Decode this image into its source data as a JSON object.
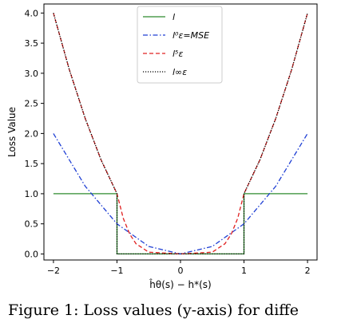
{
  "chart_data": {
    "type": "line",
    "xlabel": "ĥθ(s) − h*(s)",
    "ylabel": "Loss Value",
    "xlim": [
      -2.15,
      2.15
    ],
    "ylim": [
      -0.1,
      4.15
    ],
    "xticks": [
      -2,
      -1,
      0,
      1,
      2
    ],
    "xtick_labels": [
      "−2",
      "−1",
      "0",
      "1",
      "2"
    ],
    "yticks": [
      0.0,
      0.5,
      1.0,
      1.5,
      2.0,
      2.5,
      3.0,
      3.5,
      4.0
    ],
    "ytick_labels": [
      "0.0",
      "0.5",
      "1.0",
      "1.5",
      "2.0",
      "2.5",
      "3.0",
      "3.5",
      "4.0"
    ],
    "grid": false,
    "legend_position": "top-center",
    "series": [
      {
        "name": "l",
        "color": "#2e8b2e",
        "dash": "solid",
        "x": [
          -2,
          -1,
          -1,
          1,
          1,
          2
        ],
        "y": [
          1,
          1,
          0,
          0,
          1,
          1
        ]
      },
      {
        "name": "l⁰ε=MSE",
        "color": "#1f3fd4",
        "dash": "dashdot",
        "x": [
          -2,
          -1.5,
          -1,
          -0.5,
          0,
          0.5,
          1,
          1.5,
          2
        ],
        "y": [
          2.0,
          1.125,
          0.5,
          0.125,
          0.0,
          0.125,
          0.5,
          1.125,
          2.0
        ]
      },
      {
        "name": "l⁵ε",
        "color": "#e02020",
        "dash": "dashed",
        "x": [
          -2,
          -1.75,
          -1.5,
          -1.25,
          -1.0,
          -0.9,
          -0.8,
          -0.7,
          -0.5,
          0,
          0.5,
          0.7,
          0.8,
          0.9,
          1.0,
          1.25,
          1.5,
          1.75,
          2
        ],
        "y": [
          4.0,
          3.06,
          2.25,
          1.56,
          1.0,
          0.59,
          0.33,
          0.17,
          0.03,
          0.0,
          0.03,
          0.17,
          0.33,
          0.59,
          1.0,
          1.56,
          2.25,
          3.06,
          4.0
        ]
      },
      {
        "name": "l∞ε",
        "color": "#000000",
        "dash": "dotted",
        "x": [
          -2,
          -1.75,
          -1.5,
          -1.25,
          -1.0,
          -1.0,
          1.0,
          1.0,
          1.25,
          1.5,
          1.75,
          2
        ],
        "y": [
          4.0,
          3.06,
          2.25,
          1.56,
          1.0,
          0.0,
          0.0,
          1.0,
          1.56,
          2.25,
          3.06,
          4.0
        ]
      }
    ]
  },
  "caption": "Figure 1: Loss values (y-axis) for diffe"
}
